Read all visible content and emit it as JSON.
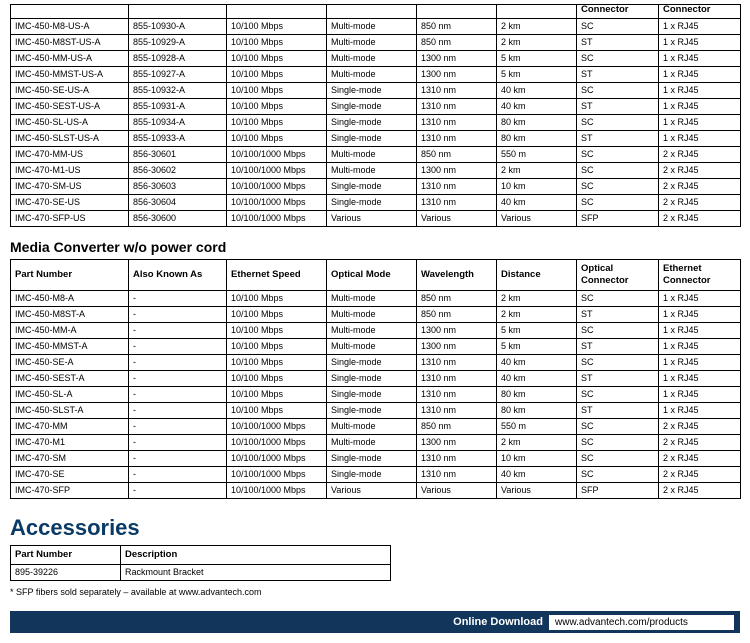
{
  "headers": {
    "part_number": "Part Number",
    "also_known_as": "Also Known As",
    "ethernet_speed": "Ethernet Speed",
    "optical_mode": "Optical Mode",
    "wavelength": "Wavelength",
    "distance": "Distance",
    "optical_connector": "Optical Connector",
    "ethernet_connector": "Ethernet Connector",
    "description": "Description"
  },
  "top_table_rows": [
    [
      "IMC-450-M8-US-A",
      "855-10930-A",
      "10/100 Mbps",
      "Multi-mode",
      "850 nm",
      "2 km",
      "SC",
      "1 x RJ45"
    ],
    [
      "IMC-450-M8ST-US-A",
      "855-10929-A",
      "10/100 Mbps",
      "Multi-mode",
      "850 nm",
      "2 km",
      "ST",
      "1 x RJ45"
    ],
    [
      "IMC-450-MM-US-A",
      "855-10928-A",
      "10/100 Mbps",
      "Multi-mode",
      "1300 nm",
      "5 km",
      "SC",
      "1 x RJ45"
    ],
    [
      "IMC-450-MMST-US-A",
      "855-10927-A",
      "10/100 Mbps",
      "Multi-mode",
      "1300 nm",
      "5 km",
      "ST",
      "1 x RJ45"
    ],
    [
      "IMC-450-SE-US-A",
      "855-10932-A",
      "10/100 Mbps",
      "Single-mode",
      "1310 nm",
      "40 km",
      "SC",
      "1 x RJ45"
    ],
    [
      "IMC-450-SEST-US-A",
      "855-10931-A",
      "10/100 Mbps",
      "Single-mode",
      "1310 nm",
      "40 km",
      "ST",
      "1 x RJ45"
    ],
    [
      "IMC-450-SL-US-A",
      "855-10934-A",
      "10/100 Mbps",
      "Single-mode",
      "1310 nm",
      "80 km",
      "SC",
      "1 x RJ45"
    ],
    [
      "IMC-450-SLST-US-A",
      "855-10933-A",
      "10/100 Mbps",
      "Single-mode",
      "1310 nm",
      "80 km",
      "ST",
      "1 x RJ45"
    ],
    [
      "IMC-470-MM-US",
      "856-30601",
      "10/100/1000 Mbps",
      "Multi-mode",
      "850 nm",
      "550 m",
      "SC",
      "2 x RJ45"
    ],
    [
      "IMC-470-M1-US",
      "856-30602",
      "10/100/1000 Mbps",
      "Multi-mode",
      "1300 nm",
      "2 km",
      "SC",
      "2 x RJ45"
    ],
    [
      "IMC-470-SM-US",
      "856-30603",
      "10/100/1000 Mbps",
      "Single-mode",
      "1310 nm",
      "10 km",
      "SC",
      "2 x RJ45"
    ],
    [
      "IMC-470-SE-US",
      "856-30604",
      "10/100/1000 Mbps",
      "Single-mode",
      "1310 nm",
      "40 km",
      "SC",
      "2 x RJ45"
    ],
    [
      "IMC-470-SFP-US",
      "856-30600",
      "10/100/1000 Mbps",
      "Various",
      "Various",
      "Various",
      "SFP",
      "2 x RJ45"
    ]
  ],
  "section_wo_title": "Media Converter w/o power cord",
  "wo_table_rows": [
    [
      "IMC-450-M8-A",
      "-",
      "10/100 Mbps",
      "Multi-mode",
      "850 nm",
      "2 km",
      "SC",
      "1 x RJ45"
    ],
    [
      "IMC-450-M8ST-A",
      "-",
      "10/100 Mbps",
      "Multi-mode",
      "850 nm",
      "2 km",
      "ST",
      "1 x RJ45"
    ],
    [
      "IMC-450-MM-A",
      "-",
      "10/100 Mbps",
      "Multi-mode",
      "1300 nm",
      "5 km",
      "SC",
      "1 x RJ45"
    ],
    [
      "IMC-450-MMST-A",
      "-",
      "10/100 Mbps",
      "Multi-mode",
      "1300 nm",
      "5 km",
      "ST",
      "1 x RJ45"
    ],
    [
      "IMC-450-SE-A",
      "-",
      "10/100 Mbps",
      "Single-mode",
      "1310 nm",
      "40 km",
      "SC",
      "1 x RJ45"
    ],
    [
      "IMC-450-SEST-A",
      "-",
      "10/100 Mbps",
      "Single-mode",
      "1310 nm",
      "40 km",
      "ST",
      "1 x RJ45"
    ],
    [
      "IMC-450-SL-A",
      "-",
      "10/100 Mbps",
      "Single-mode",
      "1310 nm",
      "80 km",
      "SC",
      "1 x RJ45"
    ],
    [
      "IMC-450-SLST-A",
      "-",
      "10/100 Mbps",
      "Single-mode",
      "1310 nm",
      "80 km",
      "ST",
      "1 x RJ45"
    ],
    [
      "IMC-470-MM",
      "-",
      "10/100/1000 Mbps",
      "Multi-mode",
      "850 nm",
      "550 m",
      "SC",
      "2 x RJ45"
    ],
    [
      "IMC-470-M1",
      "-",
      "10/100/1000 Mbps",
      "Multi-mode",
      "1300 nm",
      "2 km",
      "SC",
      "2 x RJ45"
    ],
    [
      "IMC-470-SM",
      "-",
      "10/100/1000 Mbps",
      "Single-mode",
      "1310 nm",
      "10 km",
      "SC",
      "2 x RJ45"
    ],
    [
      "IMC-470-SE",
      "-",
      "10/100/1000 Mbps",
      "Single-mode",
      "1310 nm",
      "40 km",
      "SC",
      "2 x RJ45"
    ],
    [
      "IMC-470-SFP",
      "-",
      "10/100/1000 Mbps",
      "Various",
      "Various",
      "Various",
      "SFP",
      "2 x RJ45"
    ]
  ],
  "accessories": {
    "title": "Accessories",
    "rows": [
      [
        "895-39226",
        "Rackmount Bracket"
      ]
    ],
    "footnote": "* SFP fibers sold separately – available at www.advantech.com"
  },
  "download_bar": {
    "label": "Online Download",
    "url": "www.advantech.com/products"
  },
  "colors": {
    "accent_blue": "#12355b",
    "heading_blue": "#0a3a66"
  }
}
